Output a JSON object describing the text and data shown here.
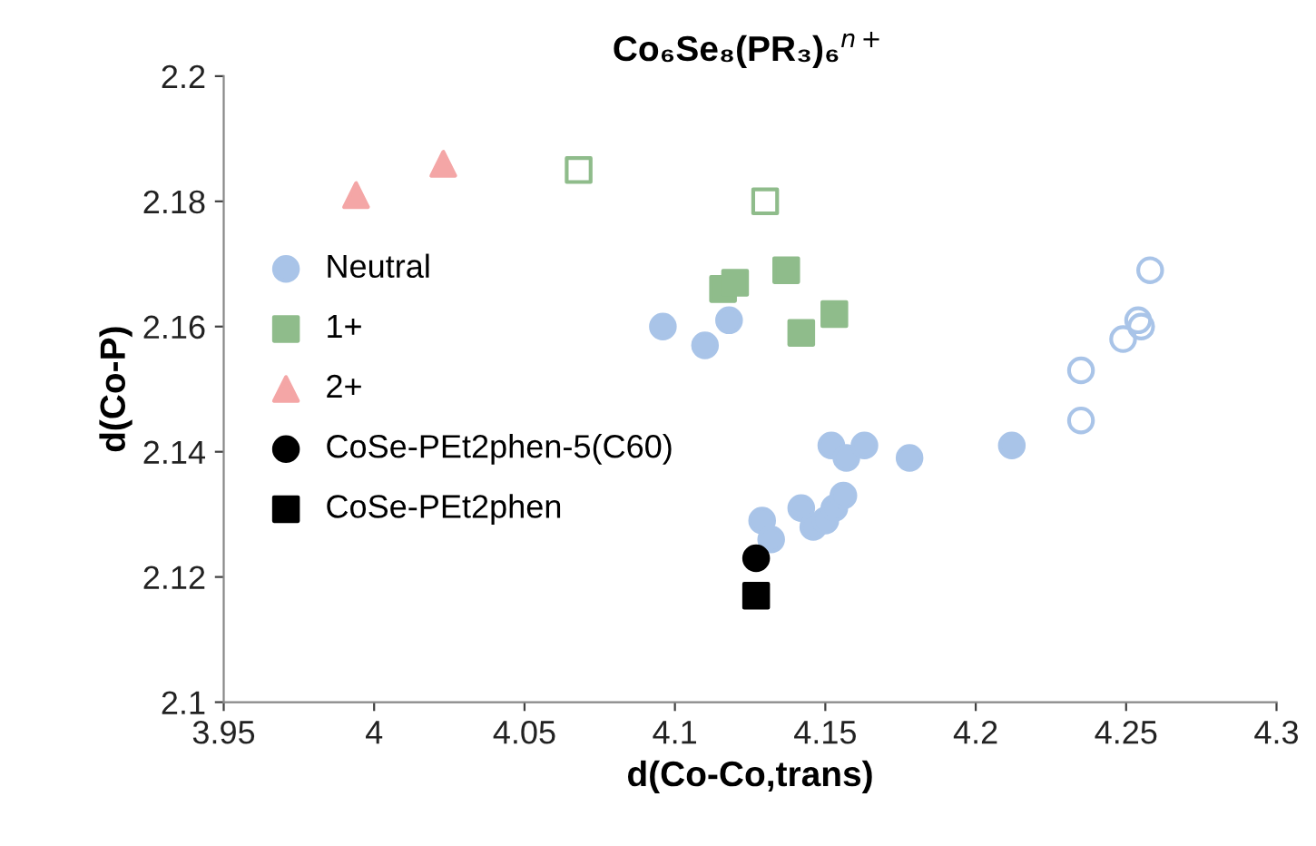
{
  "chart_data": {
    "type": "scatter",
    "title": "Co₆Se₈(PR₃)₆$^{n+}$",
    "xlabel": "d(Co-Co,trans)",
    "ylabel": "d(Co-P)",
    "xlim": [
      3.95,
      4.3
    ],
    "xticks": [
      3.95,
      4,
      4.05,
      4.1,
      4.15,
      4.2,
      4.25,
      4.3
    ],
    "ylim": [
      2.1,
      2.2
    ],
    "yticks": [
      2.1,
      2.12,
      2.14,
      2.16,
      2.18,
      2.2
    ],
    "grid": false,
    "legend": "left",
    "series": [
      {
        "name": "Neutral",
        "color": "#a9c4e8",
        "marker": "circle",
        "x": [
          4.096,
          4.11,
          4.118,
          4.152,
          4.157,
          4.163,
          4.178,
          4.212,
          4.129,
          4.132,
          4.142,
          4.146,
          4.15,
          4.153,
          4.156
        ],
        "values": [
          2.16,
          2.157,
          2.161,
          2.141,
          2.139,
          2.141,
          2.139,
          2.141,
          2.129,
          2.126,
          2.131,
          2.128,
          2.129,
          2.131,
          2.133
        ]
      },
      {
        "color": "#a9c4e8",
        "marker": "circle",
        "x": [
          4.258,
          4.254,
          4.255,
          4.249,
          4.235,
          4.235
        ],
        "values": [
          2.169,
          2.161,
          2.16,
          2.158,
          2.153,
          2.145
        ]
      },
      {
        "name": "1+",
        "color": "#8fbc8b",
        "marker": "square",
        "x": [
          4.116,
          4.12,
          4.137,
          4.142,
          4.153
        ],
        "values": [
          2.166,
          2.167,
          2.169,
          2.159,
          2.162
        ]
      },
      {
        "color": "#8fbc8b",
        "marker": "square",
        "x": [
          4.068,
          4.13
        ],
        "values": [
          2.185,
          2.18
        ]
      },
      {
        "name": "2+",
        "color": "#f4a6a6",
        "marker": "triangle",
        "x": [
          3.994,
          4.023
        ],
        "values": [
          2.181,
          2.186
        ]
      },
      {
        "name": "CoSe-PEt2phen-5(C60)",
        "color": "#000000",
        "marker": "circle",
        "x": [
          4.127
        ],
        "values": [
          2.123
        ]
      },
      {
        "name": "CoSe-PEt2phen",
        "color": "#000000",
        "marker": "square",
        "x": [
          4.127
        ],
        "values": [
          2.117
        ]
      }
    ]
  }
}
